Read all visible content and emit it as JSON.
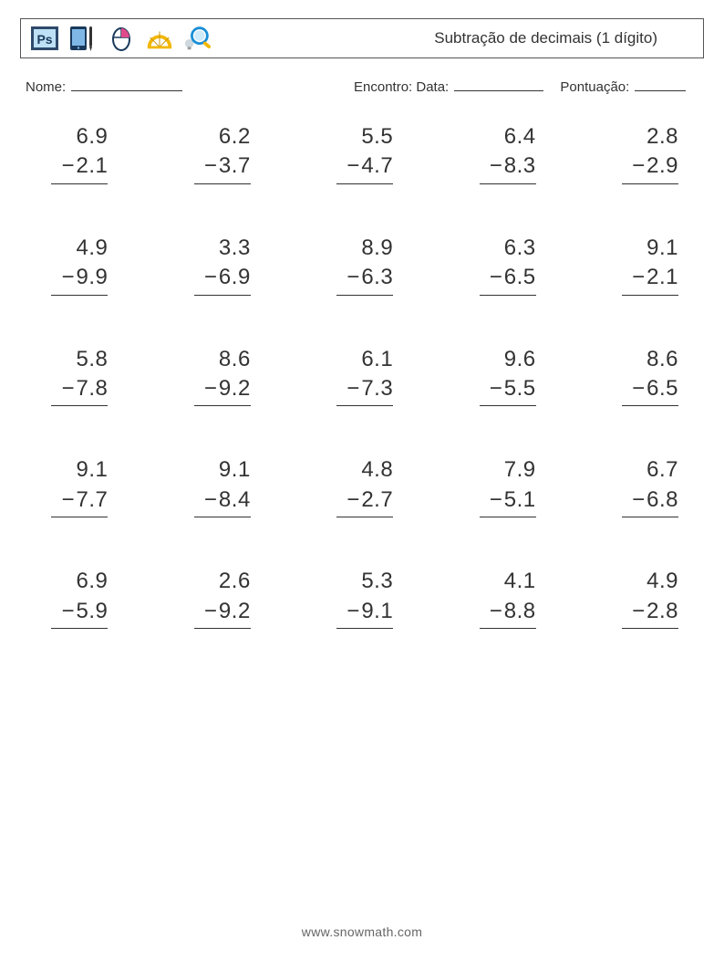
{
  "header": {
    "title": "Subtração de decimais (1 dígito)",
    "icons": {
      "ps": {
        "bg": "#2e4a6b",
        "inner_bg": "#bfe1f6",
        "label": "Ps",
        "label_color": "#1a3a5c"
      },
      "tablet": {
        "frame": "#1a3a5c",
        "screen": "#7fb8e6",
        "pen": "#333333"
      },
      "mouse": {
        "outline": "#1a3a5c",
        "button": "#e04a8a"
      },
      "protractor": "#f2b705",
      "magnifier": {
        "lens": "#1a8fd6",
        "handle": "#f2b705",
        "bulb": "#cfd8dc"
      }
    }
  },
  "meta": {
    "name_label": "Nome:",
    "name_line_width": 122,
    "encounter_label": "Encontro: Data:",
    "date_line_width": 98,
    "score_label": "Pontuação:",
    "score_line_width": 56
  },
  "style": {
    "text_color": "#333333",
    "number_fontsize": 24,
    "rule_width": 62,
    "columns": 5,
    "col_gap": 40,
    "row_gap": 54,
    "minus_sign": "−"
  },
  "problems": [
    {
      "a": "6.9",
      "b": "2.1"
    },
    {
      "a": "6.2",
      "b": "3.7"
    },
    {
      "a": "5.5",
      "b": "4.7"
    },
    {
      "a": "6.4",
      "b": "8.3"
    },
    {
      "a": "2.8",
      "b": "2.9"
    },
    {
      "a": "4.9",
      "b": "9.9"
    },
    {
      "a": "3.3",
      "b": "6.9"
    },
    {
      "a": "8.9",
      "b": "6.3"
    },
    {
      "a": "6.3",
      "b": "6.5"
    },
    {
      "a": "9.1",
      "b": "2.1"
    },
    {
      "a": "5.8",
      "b": "7.8"
    },
    {
      "a": "8.6",
      "b": "9.2"
    },
    {
      "a": "6.1",
      "b": "7.3"
    },
    {
      "a": "9.6",
      "b": "5.5"
    },
    {
      "a": "8.6",
      "b": "6.5"
    },
    {
      "a": "9.1",
      "b": "7.7"
    },
    {
      "a": "9.1",
      "b": "8.4"
    },
    {
      "a": "4.8",
      "b": "2.7"
    },
    {
      "a": "7.9",
      "b": "5.1"
    },
    {
      "a": "6.7",
      "b": "6.8"
    },
    {
      "a": "6.9",
      "b": "5.9"
    },
    {
      "a": "2.6",
      "b": "9.2"
    },
    {
      "a": "5.3",
      "b": "9.1"
    },
    {
      "a": "4.1",
      "b": "8.8"
    },
    {
      "a": "4.9",
      "b": "2.8"
    }
  ],
  "footer": "www.snowmath.com"
}
